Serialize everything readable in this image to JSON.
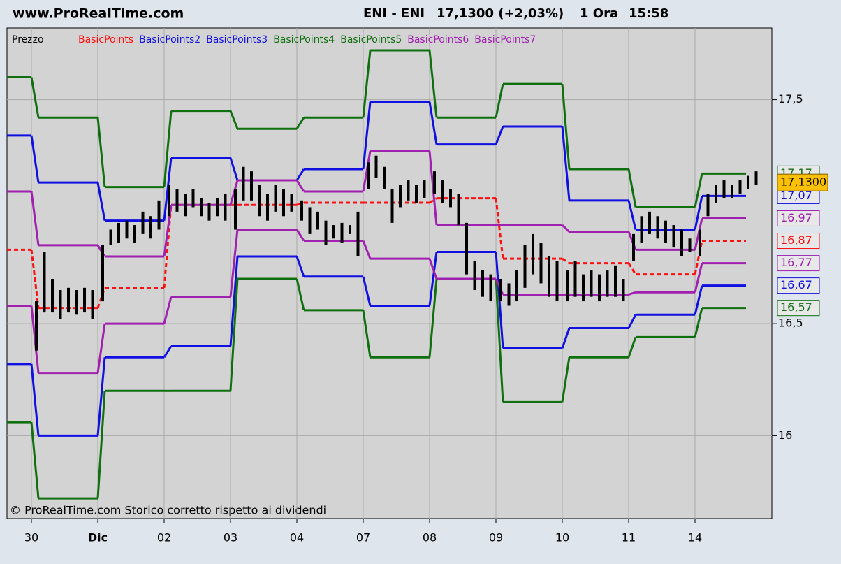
{
  "header": {
    "site": "www.ProRealTime.com",
    "symbol": "ENI - ENI",
    "quote": "17,1300 (+2,03%)",
    "timeframe": "1 Ora",
    "time": "15:58"
  },
  "chart_data": {
    "type": "line",
    "price_name": "Prezzo",
    "footnote": "© ProRealTime.com  Storico corretto rispetto ai dividendi",
    "categories": [
      null,
      "30",
      "Dic",
      "02",
      "03",
      "04",
      "07",
      "08",
      "09",
      "10",
      "11",
      "14"
    ],
    "ylim": [
      15.63,
      17.82
    ],
    "yticks": [
      16,
      {
        "value": 16.5,
        "label": "16,5"
      },
      {
        "value": 17.5,
        "label": "17,5"
      }
    ],
    "grid": true,
    "series": [
      {
        "name": "BasicPoints",
        "color": "#ff1010",
        "dashed": true,
        "values": [
          16.83,
          16.57,
          16.66,
          17.03,
          17.03,
          17.04,
          17.04,
          17.06,
          16.79,
          16.77,
          16.72,
          16.87
        ],
        "end_label": "16,87"
      },
      {
        "name": "BasicPoints2",
        "color": "#1010e0",
        "values": [
          17.34,
          17.13,
          16.96,
          17.24,
          17.14,
          17.19,
          17.49,
          17.3,
          17.38,
          17.05,
          16.92,
          17.07
        ],
        "end_label": "17,07"
      },
      {
        "name": "BasicPoints3",
        "color": "#1010e0",
        "values": [
          16.32,
          16.0,
          16.35,
          16.4,
          16.8,
          16.71,
          16.58,
          16.82,
          16.39,
          16.48,
          16.54,
          16.67
        ],
        "end_label": "16,67"
      },
      {
        "name": "BasicPoints4",
        "color": "#107010",
        "values": [
          17.6,
          17.42,
          17.11,
          17.45,
          17.37,
          17.42,
          17.72,
          17.42,
          17.57,
          17.19,
          17.02,
          17.17
        ],
        "end_label": "17,17"
      },
      {
        "name": "BasicPoints5",
        "color": "#107010",
        "values": [
          16.06,
          15.72,
          16.2,
          16.2,
          16.7,
          16.56,
          16.35,
          16.7,
          16.15,
          16.35,
          16.44,
          16.57
        ],
        "end_label": "16,57"
      },
      {
        "name": "BasicPoints6",
        "color": "#a020b0",
        "values": [
          17.09,
          16.85,
          16.8,
          17.03,
          17.14,
          17.09,
          17.27,
          16.94,
          16.94,
          16.91,
          16.83,
          16.97
        ],
        "end_label": "16,97"
      },
      {
        "name": "BasicPoints7",
        "color": "#a020b0",
        "values": [
          16.58,
          16.28,
          16.5,
          16.62,
          16.92,
          16.87,
          16.79,
          16.7,
          16.63,
          16.63,
          16.64,
          16.77
        ],
        "end_label": "16,77"
      }
    ],
    "price": {
      "color": "#000000",
      "lows": [
        16.38,
        16.55,
        16.55,
        16.52,
        16.55,
        16.54,
        16.55,
        16.52,
        16.6,
        16.85,
        16.86,
        16.88,
        16.86,
        16.9,
        16.88,
        16.92,
        16.98,
        17.0,
        16.98,
        17.02,
        16.98,
        16.96,
        16.98,
        16.96,
        16.92,
        17.05,
        17.05,
        16.98,
        16.96,
        17.0,
        16.98,
        17.0,
        16.96,
        16.9,
        16.92,
        16.85,
        16.88,
        16.86,
        16.9,
        16.8,
        17.1,
        17.15,
        17.1,
        16.95,
        17.02,
        17.05,
        17.04,
        17.06,
        17.08,
        17.04,
        17.02,
        16.94,
        16.72,
        16.65,
        16.62,
        16.6,
        16.6,
        16.58,
        16.6,
        16.66,
        16.72,
        16.68,
        16.62,
        16.6,
        16.6,
        16.62,
        16.6,
        16.62,
        16.6,
        16.62,
        16.62,
        16.6,
        16.78,
        16.86,
        16.9,
        16.88,
        16.86,
        16.84,
        16.8,
        16.82,
        16.8,
        16.98,
        17.04,
        17.06,
        17.06,
        17.08,
        17.1,
        17.12
      ],
      "highs": [
        16.6,
        16.82,
        16.7,
        16.65,
        16.66,
        16.65,
        16.66,
        16.65,
        16.85,
        16.92,
        16.95,
        16.96,
        16.94,
        17.0,
        16.98,
        17.05,
        17.12,
        17.1,
        17.08,
        17.1,
        17.06,
        17.04,
        17.06,
        17.08,
        17.1,
        17.2,
        17.18,
        17.12,
        17.08,
        17.12,
        17.1,
        17.08,
        17.05,
        17.02,
        17.0,
        16.96,
        16.94,
        16.95,
        16.94,
        17.0,
        17.22,
        17.25,
        17.2,
        17.1,
        17.12,
        17.14,
        17.12,
        17.14,
        17.18,
        17.14,
        17.1,
        17.08,
        16.95,
        16.78,
        16.74,
        16.72,
        16.7,
        16.68,
        16.74,
        16.85,
        16.9,
        16.86,
        16.8,
        16.78,
        16.74,
        16.78,
        16.72,
        16.74,
        16.72,
        16.74,
        16.76,
        16.7,
        16.9,
        16.98,
        17.0,
        16.98,
        16.96,
        16.94,
        16.92,
        16.88,
        16.92,
        17.08,
        17.12,
        17.14,
        17.12,
        17.14,
        17.16,
        17.18
      ],
      "last": 17.13,
      "last_label": "17,1300"
    }
  }
}
